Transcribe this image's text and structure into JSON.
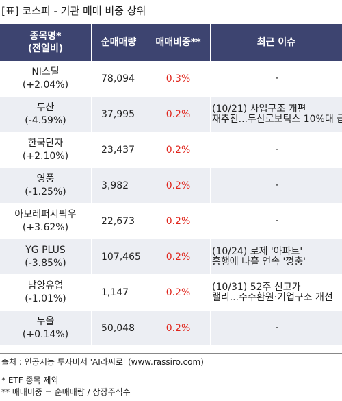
{
  "title": "[표] 코스피 - 기관 매매 비중 상위",
  "headers": {
    "name_line1": "종목명*",
    "name_line2": "(전일비)",
    "volume": "순매매량",
    "ratio": "매매비중**",
    "issue": "최근 이슈"
  },
  "rows": [
    {
      "name": "NI스틸",
      "change": "(+2.04%)",
      "volume": "78,094",
      "ratio": "0.3%",
      "issue1": "-",
      "issue2": ""
    },
    {
      "name": "두산",
      "change": "(-4.59%)",
      "volume": "37,995",
      "ratio": "0.2%",
      "issue1": "(10/21) 사업구조 개편",
      "issue2": "재추진...두산로보틱스 10%대 급"
    },
    {
      "name": "한국단자",
      "change": "(+2.10%)",
      "volume": "23,437",
      "ratio": "0.2%",
      "issue1": "-",
      "issue2": ""
    },
    {
      "name": "영풍",
      "change": "(-1.25%)",
      "volume": "3,982",
      "ratio": "0.2%",
      "issue1": "-",
      "issue2": ""
    },
    {
      "name": "아모레퍼시픽우",
      "change": "(+3.62%)",
      "volume": "22,673",
      "ratio": "0.2%",
      "issue1": "-",
      "issue2": ""
    },
    {
      "name": "YG PLUS",
      "change": "(-3.85%)",
      "volume": "107,465",
      "ratio": "0.2%",
      "issue1": "(10/24) 로제 '아파트'",
      "issue2": "흥행에 나흘 연속 '껑충'"
    },
    {
      "name": "남양유업",
      "change": "(-1.01%)",
      "volume": "1,147",
      "ratio": "0.2%",
      "issue1": "(10/31) 52주 신고가",
      "issue2": "랠리...주주환원·기업구조 개선"
    },
    {
      "name": "두올",
      "change": "(+0.14%)",
      "volume": "50,048",
      "ratio": "0.2%",
      "issue1": "-",
      "issue2": ""
    }
  ],
  "source": "출처 : 인공지능 투자비서 'AI라씨로' (www.rassiro.com)",
  "note1": "* ETF 종목 제외",
  "note2": "** 매매비중 = 순매매량 / 상장주식수"
}
